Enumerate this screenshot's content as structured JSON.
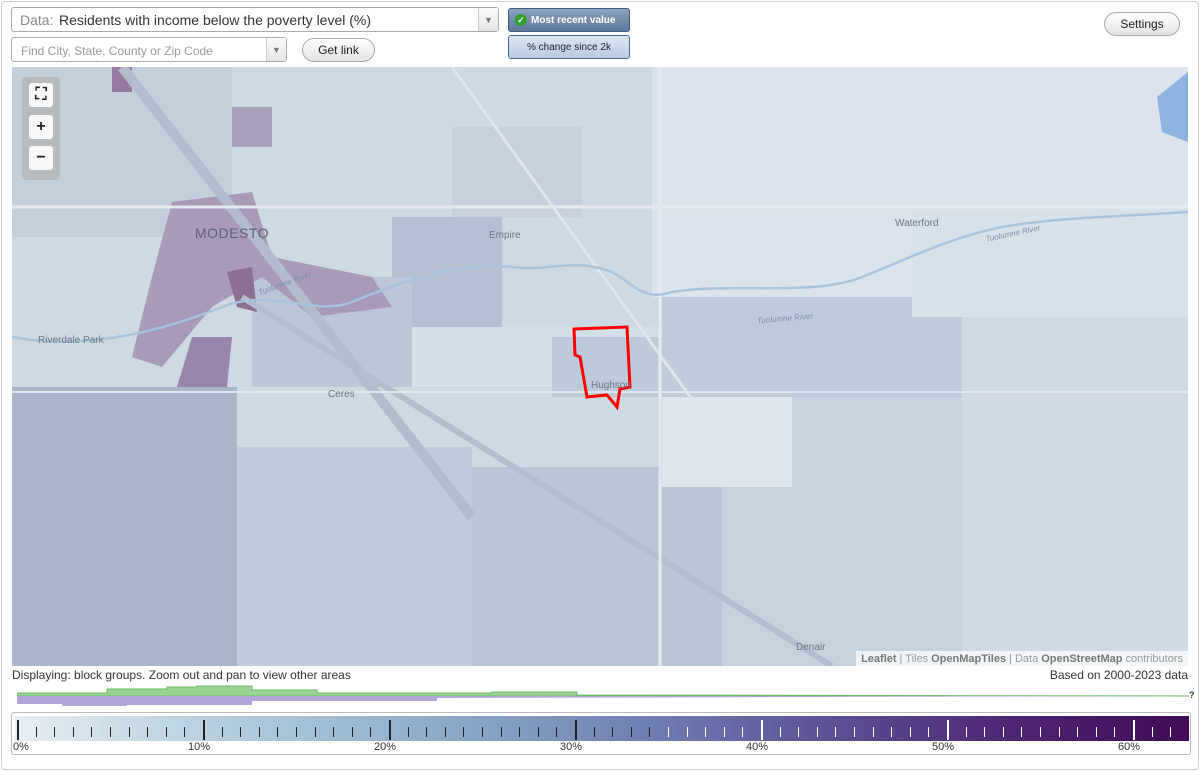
{
  "toolbar": {
    "data_prefix": "Data:",
    "data_value": "Residents with income below the poverty level (%)",
    "search_placeholder": "Find City, State, County or Zip Code",
    "get_link": "Get link",
    "most_recent": "Most recent value",
    "pct_change": "% change since 2k",
    "settings": "Settings"
  },
  "map": {
    "labels": {
      "modesto": "MODESTO",
      "empire": "Empire",
      "waterford": "Waterford",
      "riverdale": "Riverdale Park",
      "ceres": "Ceres",
      "hughson": "Hughson",
      "denair": "Denair",
      "tuolumne1": "Tuolumne River",
      "tuolumne2": "Tuolumne River",
      "tuolumne3": "Tuolumne River"
    },
    "attribution": {
      "leaflet": "Leaflet",
      "tiles_prefix": "| Tiles",
      "tiles": "OpenMapTiles",
      "data_prefix": "| Data",
      "data": "OpenStreetMap",
      "contributors": "contributors"
    },
    "icons": [
      "fullscreen-icon",
      "zoom-in-icon",
      "zoom-out-icon"
    ]
  },
  "status": {
    "displaying": "Displaying: block groups. Zoom out and pan to view other areas",
    "based_on": "Based on 2000-2023 data",
    "unknown_mark": "?"
  },
  "legend": {
    "tick_labels": [
      "0%",
      "10%",
      "20%",
      "30%",
      "40%",
      "50%",
      "60%"
    ],
    "colors": {
      "low": "#e9eff4",
      "high": "#420b55",
      "highlight": "#ff0000",
      "histogram_green": "#8fd18a",
      "histogram_purple": "#a89ad0"
    }
  }
}
